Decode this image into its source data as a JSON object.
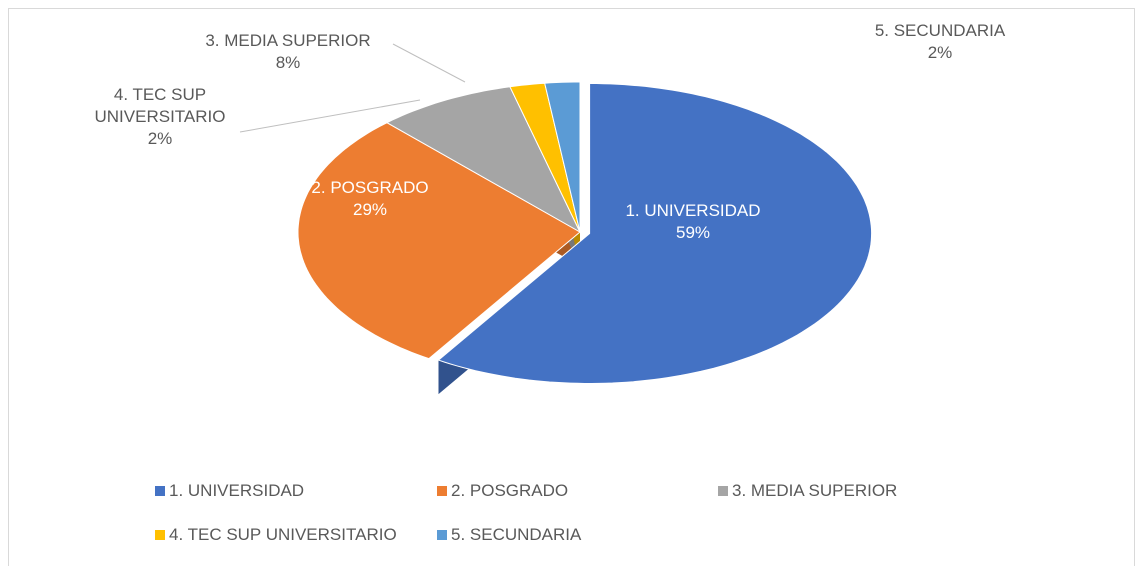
{
  "chart_data": {
    "type": "pie",
    "categories": [
      "1. UNIVERSIDAD",
      "2. POSGRADO",
      "3. MEDIA SUPERIOR",
      "4. TEC SUP UNIVERSITARIO",
      "5. SECUNDARIA"
    ],
    "values": [
      59,
      29,
      8,
      2,
      2
    ],
    "value_labels": [
      "59%",
      "29%",
      "8%",
      "2%",
      "2%"
    ],
    "colors": [
      "#4472c4",
      "#ed7d31",
      "#a5a5a5",
      "#ffc000",
      "#5b9bd5"
    ],
    "legend": "bottom"
  }
}
